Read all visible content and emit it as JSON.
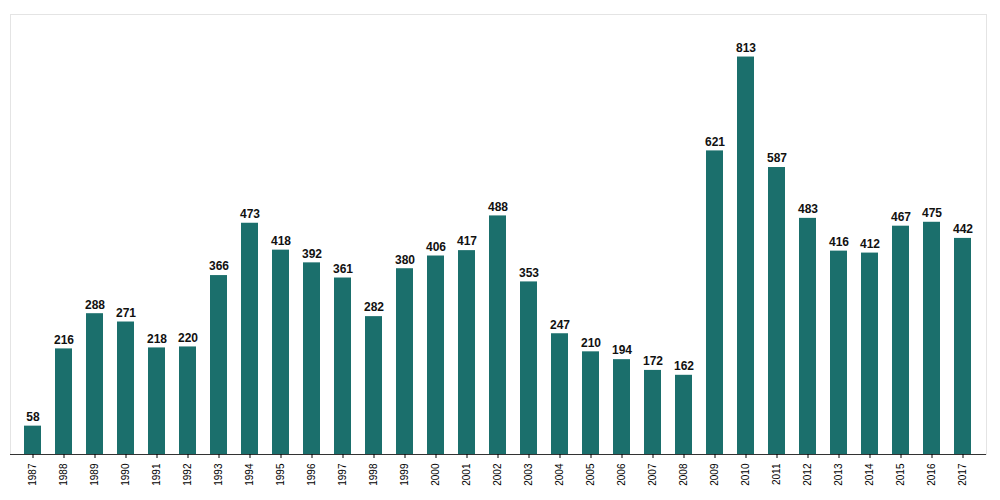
{
  "chart_data": {
    "type": "bar",
    "categories": [
      "1987",
      "1988",
      "1989",
      "1990",
      "1991",
      "1992",
      "1993",
      "1994",
      "1995",
      "1996",
      "1997",
      "1998",
      "1999",
      "2000",
      "2001",
      "2002",
      "2003",
      "2004",
      "2005",
      "2006",
      "2007",
      "2008",
      "2009",
      "2010",
      "2011",
      "2012",
      "2013",
      "2014",
      "2015",
      "2016",
      "2017"
    ],
    "values": [
      58,
      216,
      288,
      271,
      218,
      220,
      366,
      473,
      418,
      392,
      361,
      282,
      380,
      406,
      417,
      488,
      353,
      247,
      210,
      194,
      172,
      162,
      621,
      813,
      587,
      483,
      416,
      412,
      467,
      475,
      442
    ],
    "color": "#1b6f6c",
    "ylim": [
      0,
      900
    ],
    "yticks": [],
    "grid": false,
    "data_labels": true,
    "tick_labels": "x"
  }
}
